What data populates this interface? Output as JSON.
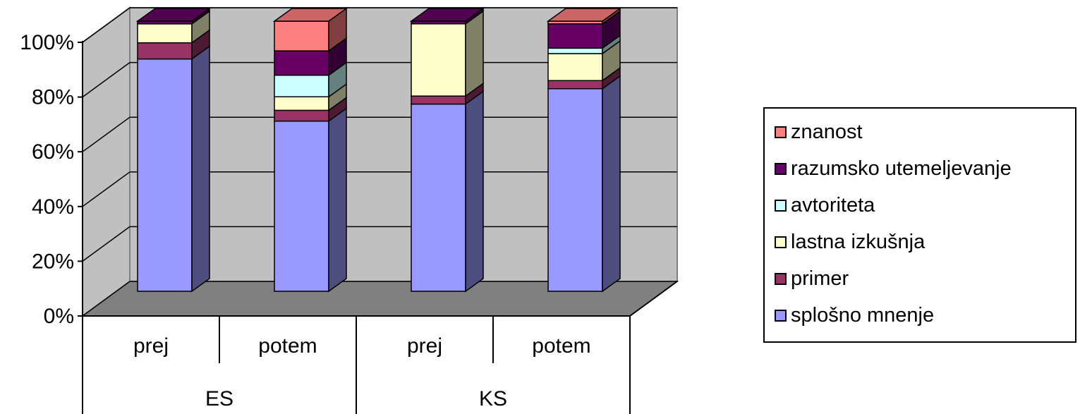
{
  "chart_data": {
    "type": "bar",
    "stacked": true,
    "percent": true,
    "three_d": true,
    "groups": [
      "ES",
      "KS"
    ],
    "categories": [
      "prej",
      "potem",
      "prej",
      "potem"
    ],
    "category_groups": [
      "ES",
      "ES",
      "KS",
      "KS"
    ],
    "y_ticks": [
      "0%",
      "20%",
      "40%",
      "60%",
      "80%",
      "100%"
    ],
    "ylim": [
      0,
      100
    ],
    "grid": true,
    "legend_position": "right",
    "series": [
      {
        "name": "splošno mnenje",
        "color": "#9999FF",
        "values": [
          86,
          63,
          70,
          75
        ]
      },
      {
        "name": "primer",
        "color": "#993366",
        "values": [
          6,
          4,
          3,
          3
        ]
      },
      {
        "name": "lastna izkušnja",
        "color": "#FFFFCC",
        "values": [
          7,
          5,
          27,
          10
        ]
      },
      {
        "name": "avtoriteta",
        "color": "#CCFFFF",
        "values": [
          0,
          8,
          0,
          2
        ]
      },
      {
        "name": "razumsko utemeljevanje",
        "color": "#660066",
        "values": [
          1,
          9,
          1,
          9
        ]
      },
      {
        "name": "znanost",
        "color": "#FF8080",
        "values": [
          0,
          11,
          0,
          1
        ]
      }
    ]
  },
  "legend": {
    "items": [
      {
        "label": "znanost",
        "color": "#FF8080"
      },
      {
        "label": "razumsko utemeljevanje",
        "color": "#660066"
      },
      {
        "label": "avtoriteta",
        "color": "#CCFFFF"
      },
      {
        "label": "lastna izkušnja",
        "color": "#FFFFCC"
      },
      {
        "label": "primer",
        "color": "#993366"
      },
      {
        "label": "splošno mnenje",
        "color": "#9999FF"
      }
    ]
  }
}
